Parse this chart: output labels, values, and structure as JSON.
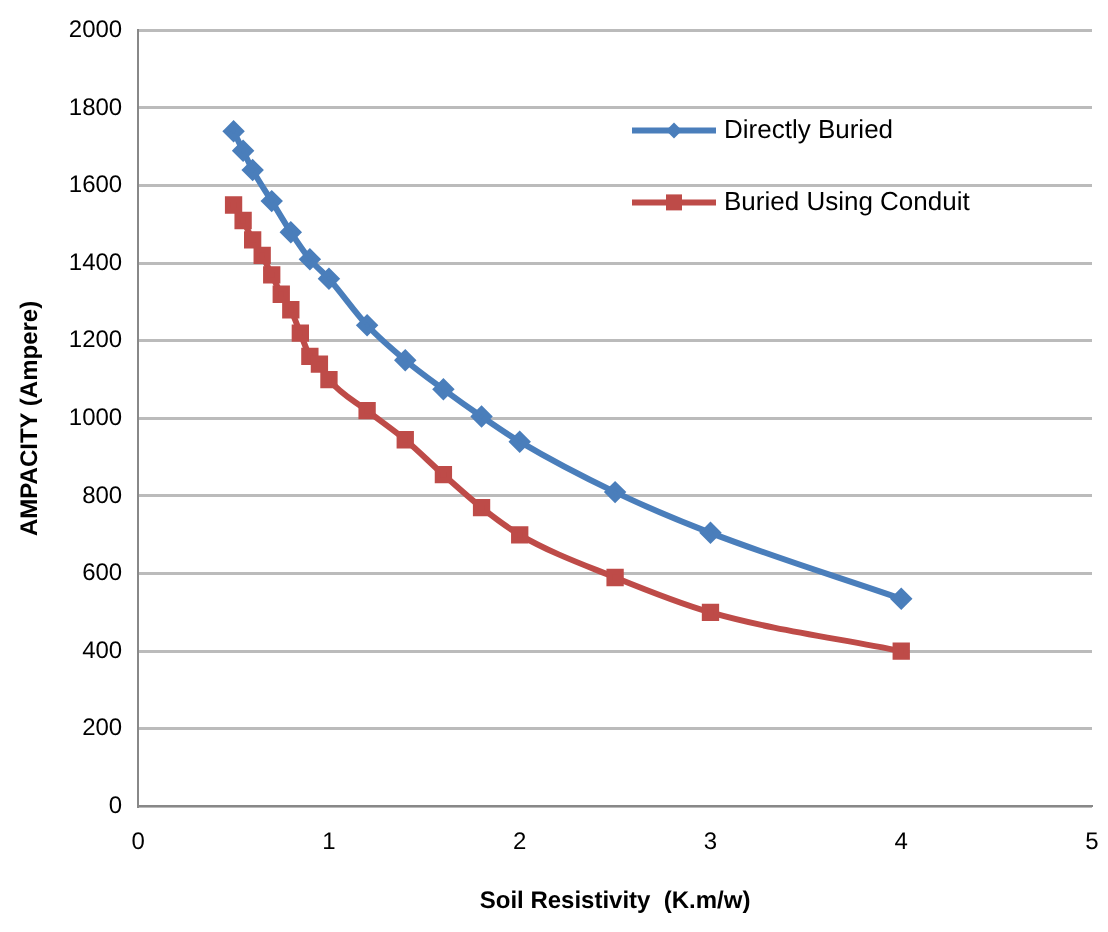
{
  "chart_data": {
    "type": "line",
    "xlabel": "Soil Resistivity  (K.m/w)",
    "ylabel": "AMPACITY (Ampere)",
    "xlim": [
      0,
      5
    ],
    "xticks": [
      0,
      1,
      2,
      3,
      4,
      5
    ],
    "ylim": [
      0,
      2000
    ],
    "yticks": [
      0,
      200,
      400,
      600,
      800,
      1000,
      1200,
      1400,
      1600,
      1800,
      2000
    ],
    "grid": "y",
    "legend": "top right",
    "line_style": "solid",
    "series": [
      {
        "name": "Directly Buried",
        "color": "#4a7ebb",
        "marker": "diamond",
        "x": [
          0.5,
          0.55,
          0.6,
          0.7,
          0.8,
          0.9,
          1,
          1.2,
          1.4,
          1.6,
          1.8,
          2,
          2.5,
          3,
          4
        ],
        "values": [
          1740,
          1690,
          1640,
          1560,
          1480,
          1410,
          1360,
          1240,
          1150,
          1075,
          1005,
          940,
          810,
          705,
          535
        ]
      },
      {
        "name": "Buried Using Conduit",
        "color": "#be4b48",
        "marker": "square",
        "x": [
          0.5,
          0.55,
          0.6,
          0.65,
          0.7,
          0.75,
          0.8,
          0.85,
          0.9,
          0.95,
          1,
          1.2,
          1.4,
          1.6,
          1.8,
          2,
          2.5,
          3,
          4
        ],
        "values": [
          1550,
          1510,
          1460,
          1420,
          1370,
          1320,
          1280,
          1220,
          1160,
          1140,
          1100,
          1020,
          945,
          855,
          770,
          700,
          590,
          500,
          400
        ]
      }
    ]
  }
}
